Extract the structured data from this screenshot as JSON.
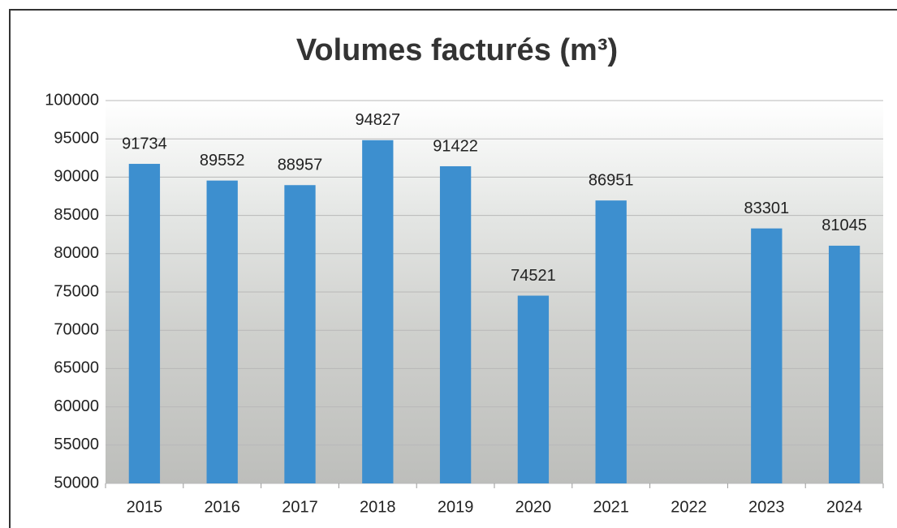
{
  "chart_data": {
    "type": "bar",
    "title": "Volumes facturés (m³)",
    "categories": [
      "2015",
      "2016",
      "2017",
      "2018",
      "2019",
      "2020",
      "2021",
      "2022",
      "2023",
      "2024"
    ],
    "values": [
      91734,
      89552,
      88957,
      94827,
      91422,
      74521,
      86951,
      null,
      83301,
      81045
    ],
    "color": "#3d8fcf",
    "ylim": [
      50000,
      100000
    ],
    "yticks": [
      50000,
      55000,
      60000,
      65000,
      70000,
      75000,
      80000,
      85000,
      90000,
      95000,
      100000
    ],
    "grid": true
  }
}
